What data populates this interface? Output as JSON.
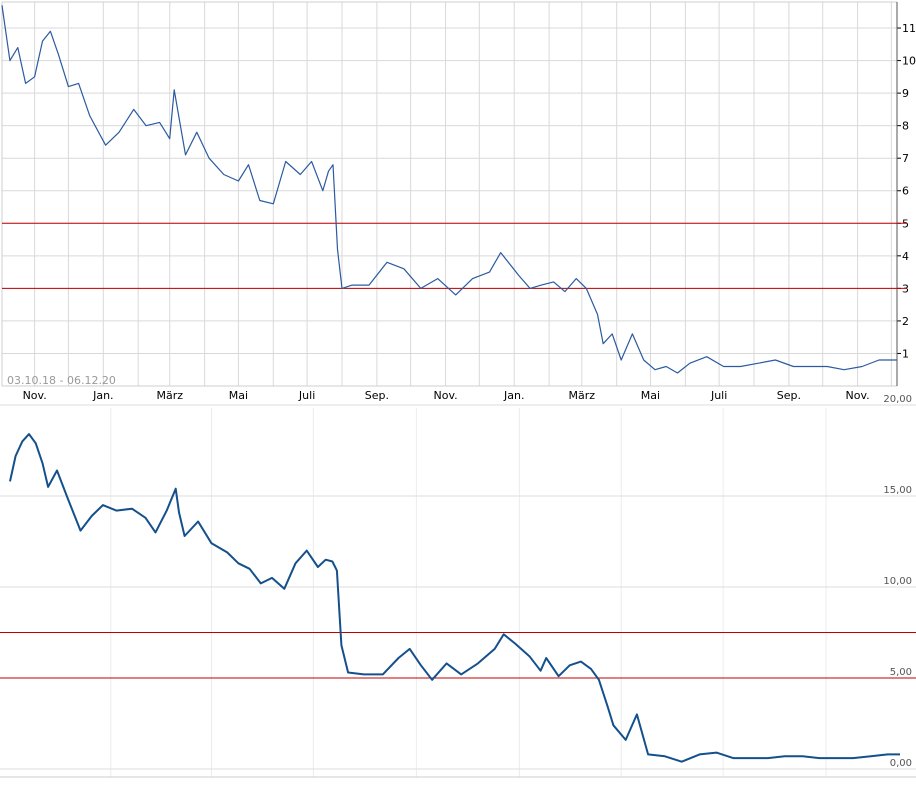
{
  "chart_data": [
    {
      "type": "line",
      "period_label": "03.10.18 - 06.12.20",
      "x_tick_labels": [
        "Nov.",
        "Jan.",
        "März",
        "Mai",
        "Juli",
        "Sep.",
        "Nov.",
        "Jan.",
        "März",
        "Mai",
        "Juli",
        "Sep.",
        "Nov."
      ],
      "y_ticks": [
        1,
        2,
        3,
        4,
        5,
        6,
        7,
        8,
        9,
        10,
        11
      ],
      "ylim": [
        0,
        11.8
      ],
      "reference_lines": [
        3,
        5
      ],
      "grid": true,
      "series": [
        {
          "color": "#2c5aa0",
          "x": [
            "2018-10-03",
            "2018-10-10",
            "2018-10-17",
            "2018-10-24",
            "2018-11-01",
            "2018-11-08",
            "2018-11-15",
            "2018-11-22",
            "2018-12-01",
            "2018-12-10",
            "2018-12-20",
            "2019-01-03",
            "2019-01-15",
            "2019-01-28",
            "2019-02-08",
            "2019-02-20",
            "2019-03-01",
            "2019-03-05",
            "2019-03-15",
            "2019-03-25",
            "2019-04-05",
            "2019-04-18",
            "2019-05-01",
            "2019-05-10",
            "2019-05-20",
            "2019-06-01",
            "2019-06-12",
            "2019-06-25",
            "2019-07-05",
            "2019-07-15",
            "2019-07-20",
            "2019-07-24",
            "2019-07-28",
            "2019-08-01",
            "2019-08-10",
            "2019-08-25",
            "2019-09-10",
            "2019-09-25",
            "2019-10-10",
            "2019-10-25",
            "2019-11-10",
            "2019-11-25",
            "2019-12-10",
            "2019-12-20",
            "2020-01-05",
            "2020-01-15",
            "2020-01-25",
            "2020-02-05",
            "2020-02-15",
            "2020-02-25",
            "2020-03-05",
            "2020-03-15",
            "2020-03-20",
            "2020-03-28",
            "2020-04-05",
            "2020-04-15",
            "2020-04-25",
            "2020-05-05",
            "2020-05-15",
            "2020-05-25",
            "2020-06-05",
            "2020-06-20",
            "2020-07-05",
            "2020-07-20",
            "2020-08-05",
            "2020-08-20",
            "2020-09-05",
            "2020-09-20",
            "2020-10-05",
            "2020-10-20",
            "2020-11-05",
            "2020-11-20",
            "2020-12-06"
          ],
          "y": [
            11.7,
            10.0,
            10.4,
            9.3,
            9.5,
            10.6,
            10.9,
            10.2,
            9.2,
            9.3,
            8.3,
            7.4,
            7.8,
            8.5,
            8.0,
            8.1,
            7.6,
            9.1,
            7.1,
            7.8,
            7.0,
            6.5,
            6.3,
            6.8,
            5.7,
            5.6,
            6.9,
            6.5,
            6.9,
            6.0,
            6.6,
            6.8,
            4.2,
            3.0,
            3.1,
            3.1,
            3.8,
            3.6,
            3.0,
            3.3,
            2.8,
            3.3,
            3.5,
            4.1,
            3.4,
            3.0,
            3.1,
            3.2,
            2.9,
            3.3,
            3.0,
            2.2,
            1.3,
            1.6,
            0.8,
            1.6,
            0.8,
            0.5,
            0.6,
            0.4,
            0.7,
            0.9,
            0.6,
            0.6,
            0.7,
            0.8,
            0.6,
            0.6,
            0.6,
            0.5,
            0.6,
            0.8,
            0.8
          ]
        }
      ]
    },
    {
      "type": "line",
      "y_ticks": [
        "0,00",
        "5,00",
        "10,00",
        "15,00",
        "20,00"
      ],
      "ylim": [
        0,
        20
      ],
      "reference_lines": [
        5.0,
        7.5
      ],
      "grid": true,
      "series": [
        {
          "color": "#14508c",
          "x": [
            "2018-10-03",
            "2018-10-08",
            "2018-10-14",
            "2018-10-20",
            "2018-10-26",
            "2018-11-01",
            "2018-11-06",
            "2018-11-14",
            "2018-11-24",
            "2018-12-05",
            "2018-12-15",
            "2018-12-25",
            "2019-01-06",
            "2019-01-20",
            "2019-02-01",
            "2019-02-10",
            "2019-02-20",
            "2019-02-28",
            "2019-03-03",
            "2019-03-08",
            "2019-03-20",
            "2019-04-01",
            "2019-04-15",
            "2019-04-25",
            "2019-05-05",
            "2019-05-15",
            "2019-05-25",
            "2019-06-05",
            "2019-06-15",
            "2019-06-25",
            "2019-07-05",
            "2019-07-12",
            "2019-07-18",
            "2019-07-22",
            "2019-07-26",
            "2019-08-01",
            "2019-08-15",
            "2019-09-01",
            "2019-09-15",
            "2019-09-25",
            "2019-10-05",
            "2019-10-15",
            "2019-10-28",
            "2019-11-10",
            "2019-11-25",
            "2019-12-10",
            "2019-12-18",
            "2019-12-28",
            "2020-01-10",
            "2020-01-20",
            "2020-01-25",
            "2020-02-05",
            "2020-02-15",
            "2020-02-25",
            "2020-03-05",
            "2020-03-12",
            "2020-03-20",
            "2020-03-25",
            "2020-04-05",
            "2020-04-15",
            "2020-04-25",
            "2020-05-10",
            "2020-05-25",
            "2020-06-10",
            "2020-06-25",
            "2020-07-10",
            "2020-07-25",
            "2020-08-10",
            "2020-08-25",
            "2020-09-10",
            "2020-09-25",
            "2020-10-10",
            "2020-10-25",
            "2020-11-10",
            "2020-11-25",
            "2020-12-06"
          ],
          "y": [
            15.8,
            17.2,
            18.0,
            18.4,
            17.9,
            16.8,
            15.5,
            16.4,
            14.8,
            13.1,
            13.9,
            14.5,
            14.2,
            14.3,
            13.8,
            13.0,
            14.2,
            15.4,
            14.1,
            12.8,
            13.6,
            12.4,
            11.9,
            11.3,
            11.0,
            10.2,
            10.5,
            9.9,
            11.3,
            12.0,
            11.1,
            11.5,
            11.4,
            10.9,
            6.8,
            5.3,
            5.2,
            5.2,
            6.1,
            6.6,
            5.7,
            4.9,
            5.8,
            5.2,
            5.8,
            6.6,
            7.4,
            6.9,
            6.2,
            5.4,
            6.1,
            5.1,
            5.7,
            5.9,
            5.5,
            4.9,
            3.4,
            2.4,
            1.6,
            3.0,
            0.8,
            0.7,
            0.4,
            0.8,
            0.9,
            0.6,
            0.6,
            0.6,
            0.7,
            0.7,
            0.6,
            0.6,
            0.6,
            0.7,
            0.8,
            0.8
          ]
        }
      ]
    }
  ]
}
